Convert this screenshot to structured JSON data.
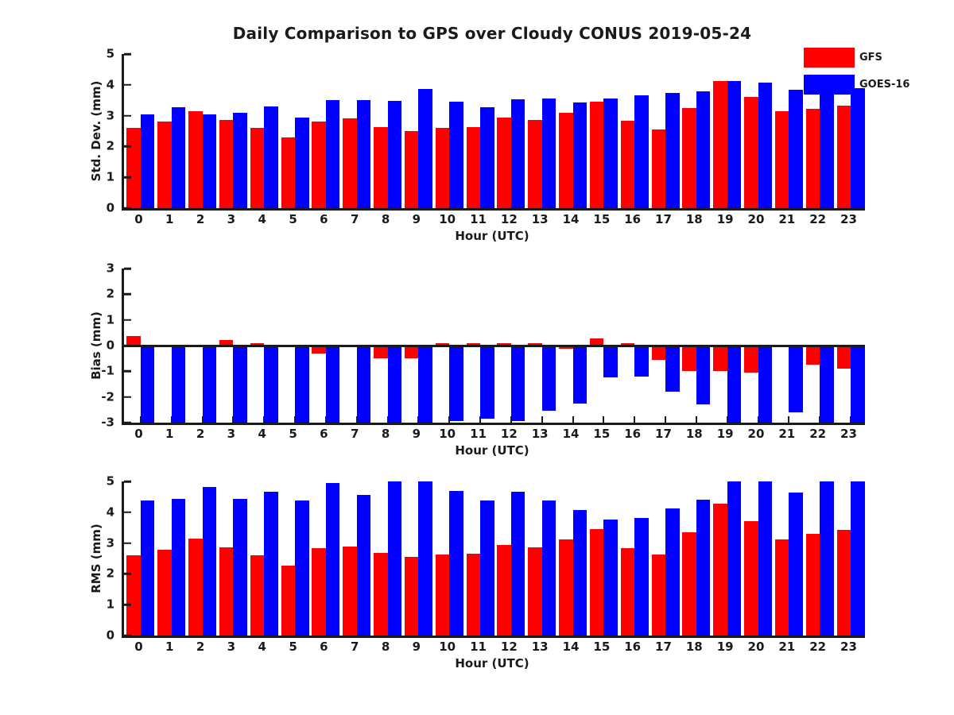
{
  "title": "Daily Comparison to GPS over Cloudy CONUS 2019-05-24",
  "axis_color": "#1a1a1a",
  "background_color": "#ffffff",
  "legend": {
    "position": "top-right-inside",
    "items": [
      {
        "label": "GFS",
        "color": "#ff0000"
      },
      {
        "label": "GOES-16",
        "color": "#0000ff"
      }
    ]
  },
  "chart_data": [
    {
      "type": "bar",
      "panel": "std-dev",
      "xlabel": "Hour (UTC)",
      "ylabel": "Std. Dev. (mm)",
      "ylim": [
        0,
        5
      ],
      "yticks": [
        0,
        1,
        2,
        3,
        4,
        5
      ],
      "grid": false,
      "categories": [
        "0",
        "1",
        "2",
        "3",
        "4",
        "5",
        "6",
        "7",
        "8",
        "9",
        "10",
        "11",
        "12",
        "13",
        "14",
        "15",
        "16",
        "17",
        "18",
        "19",
        "20",
        "21",
        "22",
        "23"
      ],
      "series": [
        {
          "name": "GFS",
          "color": "#ff0000",
          "values": [
            2.6,
            2.8,
            3.15,
            2.85,
            2.6,
            2.3,
            2.8,
            2.9,
            2.63,
            2.5,
            2.6,
            2.63,
            2.93,
            2.87,
            3.1,
            3.45,
            2.83,
            2.55,
            3.25,
            4.12,
            3.62,
            3.15,
            3.22,
            3.32
          ]
        },
        {
          "name": "GOES-16",
          "color": "#0000ff",
          "values": [
            3.05,
            3.28,
            3.05,
            3.1,
            3.3,
            2.95,
            3.5,
            3.5,
            3.48,
            3.87,
            3.45,
            3.28,
            3.52,
            3.55,
            3.42,
            3.55,
            3.65,
            3.73,
            3.8,
            4.12,
            4.08,
            3.85,
            4.33,
            3.9
          ]
        }
      ]
    },
    {
      "type": "bar",
      "panel": "bias",
      "xlabel": "Hour (UTC)",
      "ylabel": "Bias (mm)",
      "ylim": [
        -3,
        3
      ],
      "yticks": [
        -3,
        -2,
        -1,
        0,
        1,
        2,
        3
      ],
      "grid": false,
      "categories": [
        "0",
        "1",
        "2",
        "3",
        "4",
        "5",
        "6",
        "7",
        "8",
        "9",
        "10",
        "11",
        "12",
        "13",
        "14",
        "15",
        "16",
        "17",
        "18",
        "19",
        "20",
        "21",
        "22",
        "23"
      ],
      "series": [
        {
          "name": "GFS",
          "color": "#ff0000",
          "values": [
            0.38,
            -0.05,
            0.02,
            0.22,
            0.1,
            0.02,
            -0.32,
            0.03,
            -0.48,
            -0.5,
            0.08,
            0.1,
            0.1,
            0.1,
            -0.12,
            0.28,
            0.1,
            -0.57,
            -1.0,
            -1.0,
            -1.05,
            -0.05,
            -0.75,
            -0.9
          ]
        },
        {
          "name": "GOES-16",
          "color": "#0000ff",
          "values": [
            -3.0,
            -3.0,
            -3.0,
            -3.0,
            -3.0,
            -3.0,
            -3.0,
            -3.0,
            -3.0,
            -3.0,
            -2.95,
            -2.85,
            -2.95,
            -2.55,
            -2.25,
            -1.25,
            -1.2,
            -1.8,
            -2.3,
            -3.0,
            -3.0,
            -2.6,
            -3.0,
            -3.0
          ]
        }
      ]
    },
    {
      "type": "bar",
      "panel": "rms",
      "xlabel": "Hour (UTC)",
      "ylabel": "RMS (mm)",
      "ylim": [
        0,
        5
      ],
      "yticks": [
        0,
        1,
        2,
        3,
        4,
        5
      ],
      "grid": false,
      "categories": [
        "0",
        "1",
        "2",
        "3",
        "4",
        "5",
        "6",
        "7",
        "8",
        "9",
        "10",
        "11",
        "12",
        "13",
        "14",
        "15",
        "16",
        "17",
        "18",
        "19",
        "20",
        "21",
        "22",
        "23"
      ],
      "series": [
        {
          "name": "GFS",
          "color": "#ff0000",
          "values": [
            2.6,
            2.79,
            3.14,
            2.87,
            2.6,
            2.26,
            2.84,
            2.89,
            2.68,
            2.55,
            2.64,
            2.66,
            2.94,
            2.86,
            3.12,
            3.45,
            2.84,
            2.62,
            3.35,
            4.28,
            3.7,
            3.13,
            3.29,
            3.44
          ]
        },
        {
          "name": "GOES-16",
          "color": "#0000ff",
          "values": [
            4.37,
            4.44,
            4.81,
            4.44,
            4.66,
            4.38,
            4.96,
            4.57,
            5.0,
            5.0,
            4.69,
            4.38,
            4.66,
            4.37,
            4.08,
            3.76,
            3.82,
            4.13,
            4.42,
            4.99,
            4.99,
            4.65,
            4.99,
            4.99
          ]
        }
      ]
    }
  ]
}
